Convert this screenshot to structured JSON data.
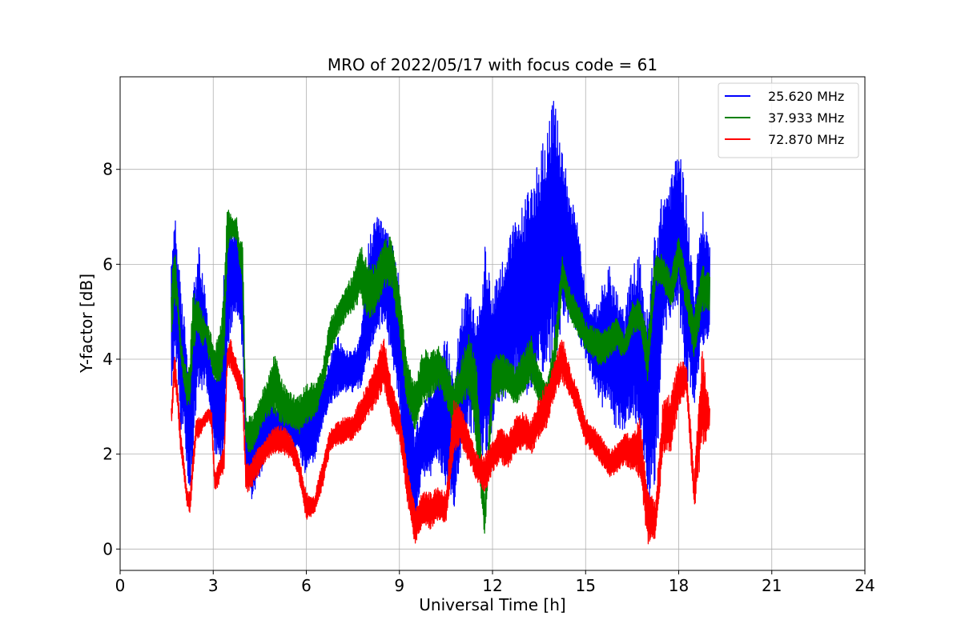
{
  "chart_data": {
    "type": "line",
    "title": "MRO of 2022/05/17 with focus code = 61",
    "xlabel": "Universal Time [h]",
    "ylabel": "Y-factor [dB]",
    "xlim": [
      0,
      24
    ],
    "ylim": [
      -0.45,
      9.95
    ],
    "xticks": [
      0,
      3,
      6,
      9,
      12,
      15,
      18,
      21,
      24
    ],
    "yticks": [
      0,
      2,
      4,
      6,
      8
    ],
    "grid": true,
    "legend_position": "top-right",
    "series": [
      {
        "name": "25.620 MHz",
        "color": "#0000ff",
        "x": [
          1.65,
          1.75,
          1.85,
          1.95,
          2.05,
          2.15,
          2.25,
          2.35,
          2.45,
          2.55,
          2.65,
          2.75,
          2.85,
          2.95,
          3.05,
          3.15,
          3.25,
          3.35,
          3.45,
          3.55,
          3.65,
          3.75,
          3.85,
          3.95,
          4.05,
          4.15,
          4.25,
          4.5,
          4.75,
          5.0,
          5.25,
          5.5,
          5.75,
          6.0,
          6.25,
          6.5,
          6.75,
          7.0,
          7.25,
          7.5,
          7.75,
          8.0,
          8.25,
          8.5,
          8.75,
          9.0,
          9.25,
          9.5,
          9.75,
          10.0,
          10.25,
          10.5,
          10.75,
          11.0,
          11.25,
          11.5,
          11.75,
          12.0,
          12.25,
          12.5,
          12.75,
          13.0,
          13.25,
          13.5,
          13.75,
          14.0,
          14.25,
          14.5,
          14.75,
          15.0,
          15.25,
          15.5,
          15.75,
          16.0,
          16.25,
          16.5,
          16.75,
          17.0,
          17.25,
          17.5,
          17.75,
          18.0,
          18.25,
          18.5,
          18.75,
          19.0
        ],
        "low": [
          3.0,
          4.0,
          3.5,
          2.5,
          2.5,
          1.5,
          1.2,
          2.0,
          3.0,
          3.5,
          3.3,
          3.5,
          3.0,
          2.5,
          2.0,
          2.0,
          1.8,
          2.0,
          4.0,
          4.5,
          4.8,
          5.0,
          4.5,
          4.2,
          1.5,
          1.2,
          1.0,
          1.5,
          2.0,
          2.3,
          2.4,
          2.2,
          2.0,
          1.5,
          1.8,
          2.5,
          3.0,
          3.2,
          3.3,
          3.3,
          3.4,
          3.8,
          4.5,
          4.8,
          4.0,
          3.0,
          0.8,
          0.5,
          1.5,
          1.5,
          1.8,
          1.2,
          0.8,
          2.0,
          2.5,
          2.3,
          1.8,
          2.5,
          3.0,
          3.2,
          3.5,
          3.3,
          3.0,
          3.5,
          3.8,
          4.0,
          4.5,
          4.8,
          4.5,
          4.0,
          3.5,
          3.0,
          2.8,
          2.5,
          2.5,
          2.8,
          2.5,
          1.0,
          1.0,
          4.5,
          4.8,
          5.0,
          3.5,
          3.0,
          4.0,
          4.5
        ],
        "high": [
          6.0,
          7.3,
          6.5,
          5.5,
          5.0,
          4.5,
          3.5,
          5.5,
          6.0,
          6.4,
          5.8,
          5.5,
          4.5,
          4.0,
          3.8,
          4.0,
          4.5,
          6.0,
          6.5,
          7.1,
          6.8,
          7.0,
          6.5,
          6.0,
          3.0,
          2.5,
          2.5,
          3.0,
          3.2,
          3.0,
          3.0,
          3.0,
          2.9,
          3.2,
          3.0,
          3.5,
          4.0,
          4.5,
          4.2,
          4.2,
          4.5,
          6.5,
          7.0,
          6.9,
          6.5,
          5.8,
          3.5,
          2.5,
          3.0,
          3.5,
          3.8,
          4.5,
          3.8,
          5.2,
          5.5,
          4.8,
          6.4,
          5.5,
          6.0,
          6.5,
          7.0,
          7.3,
          7.8,
          8.3,
          9.0,
          9.5,
          8.5,
          7.5,
          7.0,
          5.5,
          5.0,
          5.5,
          6.0,
          5.5,
          5.0,
          6.0,
          6.2,
          5.0,
          7.0,
          7.5,
          7.8,
          8.6,
          7.5,
          5.5,
          7.2,
          6.5
        ]
      },
      {
        "name": "37.933 MHz",
        "color": "#008000",
        "x": [
          1.65,
          1.75,
          1.85,
          1.95,
          2.05,
          2.15,
          2.25,
          2.35,
          2.45,
          2.55,
          2.65,
          2.75,
          2.85,
          2.95,
          3.05,
          3.15,
          3.25,
          3.35,
          3.45,
          3.55,
          3.65,
          3.75,
          3.85,
          3.95,
          4.05,
          4.15,
          4.25,
          4.5,
          4.75,
          5.0,
          5.25,
          5.5,
          5.75,
          6.0,
          6.25,
          6.5,
          6.75,
          7.0,
          7.25,
          7.5,
          7.75,
          8.0,
          8.25,
          8.5,
          8.75,
          9.0,
          9.25,
          9.5,
          9.75,
          10.0,
          10.25,
          10.5,
          10.75,
          11.0,
          11.25,
          11.5,
          11.75,
          12.0,
          12.25,
          12.5,
          12.75,
          13.0,
          13.25,
          13.5,
          13.75,
          14.0,
          14.25,
          14.5,
          14.75,
          15.0,
          15.25,
          15.5,
          15.75,
          16.0,
          16.25,
          16.5,
          16.75,
          17.0,
          17.25,
          17.5,
          17.75,
          18.0,
          18.25,
          18.5,
          18.75,
          19.0
        ],
        "low": [
          4.5,
          5.0,
          5.0,
          4.0,
          3.5,
          3.0,
          3.0,
          4.0,
          4.5,
          4.5,
          4.2,
          4.5,
          4.0,
          3.8,
          3.5,
          3.5,
          3.5,
          4.0,
          6.0,
          6.5,
          6.5,
          6.5,
          6.0,
          5.5,
          2.2,
          2.0,
          2.0,
          2.5,
          2.8,
          2.8,
          2.6,
          2.5,
          2.4,
          2.6,
          2.7,
          3.2,
          4.0,
          4.5,
          4.8,
          5.0,
          5.2,
          4.8,
          5.0,
          5.5,
          5.5,
          4.5,
          3.0,
          2.5,
          3.0,
          3.2,
          3.4,
          3.0,
          2.5,
          3.0,
          3.2,
          2.0,
          0.2,
          3.0,
          3.2,
          3.2,
          3.0,
          3.3,
          3.5,
          3.0,
          2.8,
          3.5,
          5.5,
          4.8,
          4.5,
          4.2,
          4.0,
          3.8,
          4.0,
          4.2,
          4.0,
          4.5,
          4.6,
          3.5,
          5.5,
          5.5,
          5.0,
          5.8,
          5.0,
          4.0,
          5.0,
          5.0
        ],
        "high": [
          5.5,
          6.5,
          5.5,
          4.5,
          4.0,
          3.8,
          4.0,
          5.5,
          5.3,
          5.2,
          5.0,
          4.8,
          4.7,
          4.5,
          4.2,
          4.5,
          4.8,
          5.5,
          7.2,
          7.1,
          7.0,
          7.0,
          6.5,
          6.5,
          2.8,
          2.8,
          2.8,
          3.2,
          3.6,
          4.2,
          3.5,
          3.3,
          3.2,
          3.5,
          3.5,
          3.8,
          4.8,
          5.2,
          5.5,
          5.8,
          6.5,
          6.0,
          6.0,
          6.5,
          6.6,
          5.5,
          4.0,
          3.5,
          4.2,
          4.2,
          4.3,
          4.0,
          3.5,
          4.0,
          4.6,
          3.8,
          1.0,
          4.0,
          4.2,
          4.0,
          3.8,
          4.2,
          4.5,
          3.8,
          3.5,
          4.5,
          6.2,
          5.5,
          5.2,
          4.8,
          4.7,
          4.6,
          4.7,
          4.9,
          4.5,
          5.2,
          5.3,
          4.5,
          6.3,
          6.2,
          5.8,
          6.7,
          5.8,
          5.0,
          6.0,
          5.8
        ]
      },
      {
        "name": "72.870 MHz",
        "color": "#ff0000",
        "x": [
          1.65,
          1.75,
          1.85,
          1.95,
          2.05,
          2.15,
          2.25,
          2.35,
          2.45,
          2.55,
          2.65,
          2.75,
          2.85,
          2.95,
          3.05,
          3.15,
          3.25,
          3.35,
          3.45,
          3.55,
          3.65,
          3.75,
          3.85,
          3.95,
          4.05,
          4.15,
          4.25,
          4.5,
          4.75,
          5.0,
          5.25,
          5.5,
          5.75,
          6.0,
          6.25,
          6.5,
          6.75,
          7.0,
          7.25,
          7.5,
          7.75,
          8.0,
          8.25,
          8.5,
          8.75,
          9.0,
          9.25,
          9.5,
          9.75,
          10.0,
          10.25,
          10.5,
          10.75,
          11.0,
          11.25,
          11.5,
          11.75,
          12.0,
          12.25,
          12.5,
          12.75,
          13.0,
          13.25,
          13.5,
          13.75,
          14.0,
          14.25,
          14.5,
          14.75,
          15.0,
          15.25,
          15.5,
          15.75,
          16.0,
          16.25,
          16.5,
          16.75,
          17.0,
          17.25,
          17.5,
          17.75,
          18.0,
          18.25,
          18.5,
          18.75,
          19.0
        ],
        "low": [
          2.5,
          3.5,
          3.0,
          2.0,
          1.5,
          0.9,
          0.7,
          1.5,
          2.3,
          2.3,
          2.5,
          2.6,
          2.7,
          2.5,
          1.2,
          1.3,
          1.5,
          1.6,
          3.8,
          3.8,
          3.6,
          3.4,
          3.2,
          3.0,
          1.2,
          1.2,
          1.3,
          1.6,
          1.9,
          2.0,
          2.0,
          1.9,
          1.5,
          0.6,
          0.7,
          1.2,
          2.0,
          2.2,
          2.2,
          2.3,
          2.5,
          2.8,
          3.0,
          3.4,
          2.6,
          2.3,
          1.0,
          0.1,
          0.5,
          0.4,
          0.6,
          0.5,
          2.0,
          2.2,
          1.8,
          1.4,
          1.2,
          1.6,
          1.8,
          1.7,
          2.0,
          2.1,
          2.0,
          2.3,
          2.5,
          3.2,
          3.5,
          3.2,
          2.8,
          2.2,
          2.0,
          1.8,
          1.5,
          1.6,
          1.8,
          1.6,
          1.5,
          0.1,
          0.2,
          2.0,
          2.0,
          3.0,
          3.3,
          0.8,
          2.0,
          2.5
        ],
        "high": [
          3.0,
          4.2,
          3.5,
          2.5,
          2.0,
          1.3,
          1.2,
          2.0,
          2.8,
          2.8,
          2.8,
          2.9,
          3.0,
          2.9,
          1.6,
          1.8,
          2.0,
          2.2,
          4.2,
          4.5,
          4.2,
          4.0,
          3.8,
          3.6,
          1.8,
          1.8,
          1.9,
          2.2,
          2.4,
          2.6,
          2.6,
          2.4,
          2.0,
          1.2,
          1.1,
          1.8,
          2.5,
          2.7,
          2.8,
          2.8,
          3.2,
          3.5,
          4.0,
          4.5,
          3.5,
          3.0,
          1.8,
          0.9,
          1.2,
          1.2,
          1.3,
          1.2,
          3.2,
          3.0,
          2.5,
          2.0,
          2.0,
          2.3,
          2.6,
          2.4,
          2.8,
          2.9,
          2.7,
          3.2,
          3.5,
          4.0,
          4.5,
          3.8,
          3.4,
          2.8,
          2.6,
          2.4,
          2.1,
          2.2,
          2.5,
          2.4,
          2.8,
          1.3,
          1.0,
          3.2,
          3.3,
          4.0,
          3.9,
          1.5,
          4.3,
          3.0
        ]
      }
    ]
  }
}
